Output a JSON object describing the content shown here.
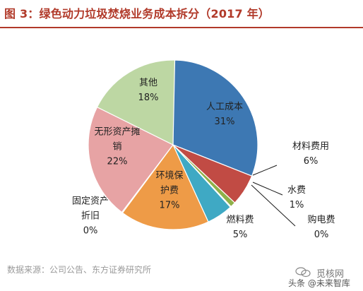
{
  "figure": {
    "title": "图 3：绿色动力垃圾焚烧业务成本拆分（2017 年）",
    "source": "数据来源：公司公告、东方证券研究所",
    "watermark": "觅核网",
    "watermark_sub": "头条 @未来智库"
  },
  "chart_data": {
    "type": "pie",
    "title": "图 3：绿色动力垃圾焚烧业务成本拆分（2017 年）",
    "slices": [
      {
        "label_lines": [
          "人工成本"
        ],
        "name": "人工成本",
        "value": 31,
        "value_label": "31%",
        "color": "#3d78b3"
      },
      {
        "label_lines": [
          "材料费用"
        ],
        "name": "材料费用",
        "value": 6,
        "value_label": "6%",
        "color": "#c14b44"
      },
      {
        "label_lines": [
          "水费"
        ],
        "name": "水费",
        "value": 1,
        "value_label": "1%",
        "color": "#8fb04a"
      },
      {
        "label_lines": [
          "购电费"
        ],
        "name": "购电费",
        "value": 0,
        "value_label": "0%",
        "color": "#6f5a99"
      },
      {
        "label_lines": [
          "燃料费"
        ],
        "name": "燃料费",
        "value": 5,
        "value_label": "5%",
        "color": "#3fa9c4"
      },
      {
        "label_lines": [
          "环境保",
          "护费"
        ],
        "name": "环境保护费",
        "value": 17,
        "value_label": "17%",
        "color": "#ee9b47"
      },
      {
        "label_lines": [
          "固定资产",
          "折旧"
        ],
        "name": "固定资产折旧",
        "value": 0,
        "value_label": "0%",
        "color": "#a9a9a9"
      },
      {
        "label_lines": [
          "无形资产摊",
          "销"
        ],
        "name": "无形资产摊销",
        "value": 22,
        "value_label": "22%",
        "color": "#e7a3a4"
      },
      {
        "label_lines": [
          "其他"
        ],
        "name": "其他",
        "value": 18,
        "value_label": "18%",
        "color": "#bdd7a3"
      }
    ]
  }
}
